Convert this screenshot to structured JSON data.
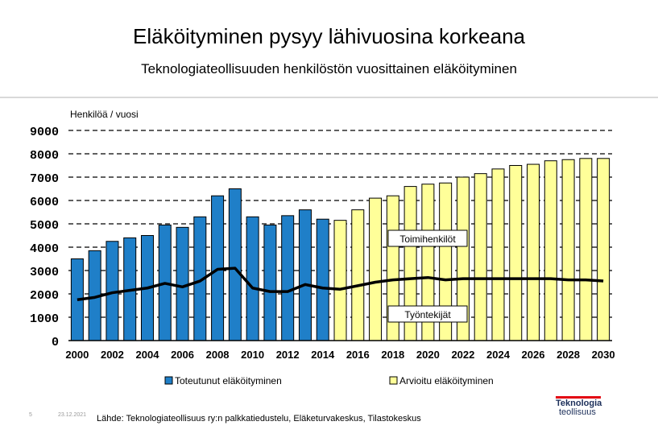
{
  "header": {
    "title": "Eläköityminen pysyy lähivuosina korkeana",
    "subtitle": "Teknologiateollisuuden henkilöstön vuosittainen eläköityminen"
  },
  "chart_data": {
    "type": "bar",
    "ylabel": "Henkilöä / vuosi",
    "ylim": [
      0,
      9000
    ],
    "yticks": [
      "0",
      "1000",
      "2000",
      "3000",
      "4000",
      "5000",
      "6000",
      "7000",
      "8000",
      "9000"
    ],
    "categories": [
      "2000",
      "2001",
      "2002",
      "2003",
      "2004",
      "2005",
      "2006",
      "2007",
      "2008",
      "2009",
      "2010",
      "2011",
      "2012",
      "2013",
      "2014",
      "2015",
      "2016",
      "2017",
      "2018",
      "2019",
      "2020",
      "2021",
      "2022",
      "2023",
      "2024",
      "2025",
      "2026",
      "2027",
      "2028",
      "2029",
      "2030"
    ],
    "xtick_labels": [
      "2000",
      "2002",
      "2004",
      "2006",
      "2008",
      "2010",
      "2012",
      "2014",
      "2016",
      "2018",
      "2020",
      "2022",
      "2024",
      "2026",
      "2028",
      "2030"
    ],
    "series": [
      {
        "name": "Toteutunut eläköityminen",
        "color": "#1f7fc8",
        "values": [
          3500,
          3850,
          4250,
          4400,
          4500,
          4950,
          4850,
          5300,
          6200,
          6500,
          5300,
          4950,
          5350,
          5600,
          5200,
          null,
          null,
          null,
          null,
          null,
          null,
          null,
          null,
          null,
          null,
          null,
          null,
          null,
          null,
          null,
          null
        ]
      },
      {
        "name": "Arvioitu eläköityminen",
        "color": "#ffff99",
        "values": [
          null,
          null,
          null,
          null,
          null,
          null,
          null,
          null,
          null,
          null,
          null,
          null,
          null,
          null,
          null,
          5150,
          5600,
          6100,
          6200,
          6600,
          6700,
          6750,
          7000,
          7150,
          7350,
          7500,
          7550,
          7700,
          7750,
          7800,
          7800
        ]
      },
      {
        "name": "Työntekijät",
        "type": "line",
        "color": "#000000",
        "values": [
          1750,
          1850,
          2050,
          2150,
          2250,
          2450,
          2300,
          2550,
          3050,
          3100,
          2250,
          2100,
          2100,
          2400,
          2250,
          2200,
          2350,
          2500,
          2600,
          2650,
          2700,
          2600,
          2650,
          2650,
          2650,
          2650,
          2650,
          2650,
          2600,
          2600,
          2550
        ]
      }
    ],
    "annotations": [
      "Toimihenkilöt",
      "Työntekijät"
    ]
  },
  "footer": {
    "page_number": "5",
    "date": "23.12.2021",
    "source": "Lähde: Teknologiateollisuus ry:n palkkatiedustelu, Eläketurvakeskus, Tilastokeskus",
    "logo_line1": "Teknologia",
    "logo_line2": "teollisuus"
  }
}
